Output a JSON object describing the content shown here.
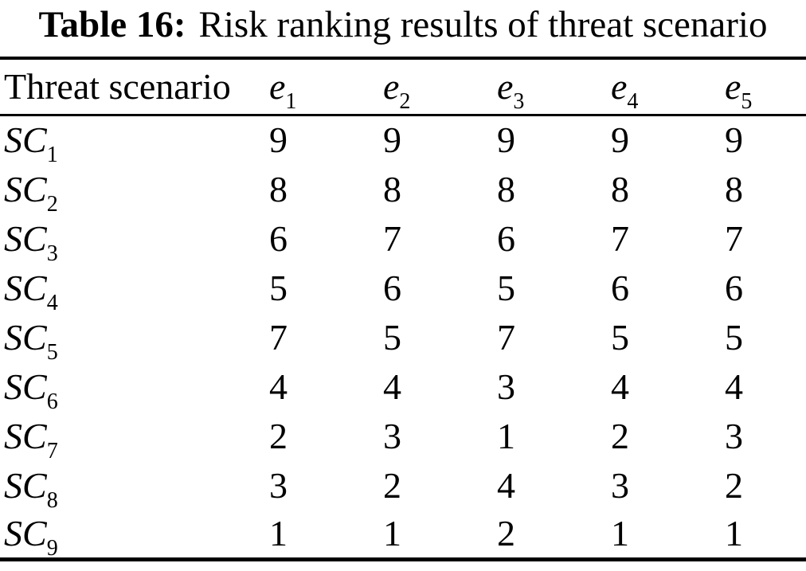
{
  "caption": {
    "label": "Table 16:",
    "text": "Risk ranking results of threat scenario"
  },
  "table": {
    "header": {
      "first_col": "Threat scenario",
      "columns": [
        {
          "base": "e",
          "sub": "1"
        },
        {
          "base": "e",
          "sub": "2"
        },
        {
          "base": "e",
          "sub": "3"
        },
        {
          "base": "e",
          "sub": "4"
        },
        {
          "base": "e",
          "sub": "5"
        }
      ]
    },
    "rows": [
      {
        "base": "SC",
        "sub": "1",
        "values": [
          "9",
          "9",
          "9",
          "9",
          "9"
        ]
      },
      {
        "base": "SC",
        "sub": "2",
        "values": [
          "8",
          "8",
          "8",
          "8",
          "8"
        ]
      },
      {
        "base": "SC",
        "sub": "3",
        "values": [
          "6",
          "7",
          "6",
          "7",
          "7"
        ]
      },
      {
        "base": "SC",
        "sub": "4",
        "values": [
          "5",
          "6",
          "5",
          "6",
          "6"
        ]
      },
      {
        "base": "SC",
        "sub": "5",
        "values": [
          "7",
          "5",
          "7",
          "5",
          "5"
        ]
      },
      {
        "base": "SC",
        "sub": "6",
        "values": [
          "4",
          "4",
          "3",
          "4",
          "4"
        ]
      },
      {
        "base": "SC",
        "sub": "7",
        "values": [
          "2",
          "3",
          "1",
          "2",
          "3"
        ]
      },
      {
        "base": "SC",
        "sub": "8",
        "values": [
          "3",
          "2",
          "4",
          "3",
          "2"
        ]
      },
      {
        "base": "SC",
        "sub": "9",
        "values": [
          "1",
          "1",
          "2",
          "1",
          "1"
        ]
      }
    ]
  },
  "chart_data": {
    "type": "table",
    "title": "Table 16: Risk ranking results of threat scenario",
    "columns": [
      "Threat scenario",
      "e1",
      "e2",
      "e3",
      "e4",
      "e5"
    ],
    "rows": [
      [
        "SC1",
        9,
        9,
        9,
        9,
        9
      ],
      [
        "SC2",
        8,
        8,
        8,
        8,
        8
      ],
      [
        "SC3",
        6,
        7,
        6,
        7,
        7
      ],
      [
        "SC4",
        5,
        6,
        5,
        6,
        6
      ],
      [
        "SC5",
        7,
        5,
        7,
        5,
        5
      ],
      [
        "SC6",
        4,
        4,
        3,
        4,
        4
      ],
      [
        "SC7",
        2,
        3,
        1,
        2,
        3
      ],
      [
        "SC8",
        3,
        2,
        4,
        3,
        2
      ],
      [
        "SC9",
        1,
        1,
        2,
        1,
        1
      ]
    ]
  }
}
